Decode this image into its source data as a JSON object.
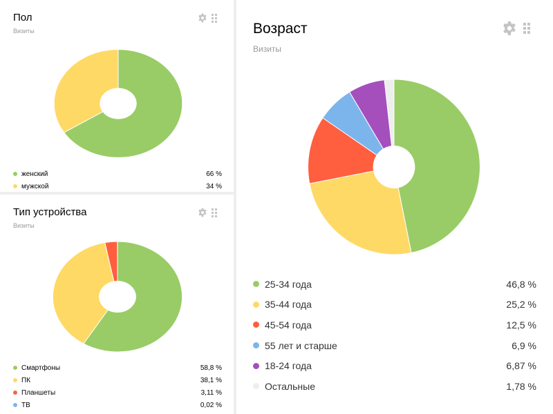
{
  "widgets": {
    "gender": {
      "title": "Пол",
      "subtitle": "Визиты",
      "icons": [
        "gear-icon",
        "drag-handle-icon"
      ],
      "chart_data": {
        "type": "pie",
        "series": [
          {
            "name": "женский",
            "value": 66,
            "label": "66 %",
            "color": "#99cc66"
          },
          {
            "name": "мужской",
            "value": 34,
            "label": "34 %",
            "color": "#ffd966"
          }
        ]
      }
    },
    "device": {
      "title": "Тип устройства",
      "subtitle": "Визиты",
      "icons": [
        "gear-icon",
        "drag-handle-icon"
      ],
      "chart_data": {
        "type": "pie",
        "series": [
          {
            "name": "Смартфоны",
            "value": 58.8,
            "label": "58,8 %",
            "color": "#99cc66"
          },
          {
            "name": "ПК",
            "value": 38.1,
            "label": "38,1 %",
            "color": "#ffd966"
          },
          {
            "name": "Планшеты",
            "value": 3.11,
            "label": "3,11 %",
            "color": "#ff5f3f"
          },
          {
            "name": "ТВ",
            "value": 0.02,
            "label": "0,02 %",
            "color": "#7cb5ec"
          }
        ]
      }
    },
    "age": {
      "title": "Возраст",
      "subtitle": "Визиты",
      "icons": [
        "gear-icon",
        "drag-handle-icon"
      ],
      "chart_data": {
        "type": "pie",
        "series": [
          {
            "name": "25-34 года",
            "value": 46.8,
            "label": "46,8 %",
            "color": "#99cc66"
          },
          {
            "name": "35-44 года",
            "value": 25.2,
            "label": "25,2 %",
            "color": "#ffd966"
          },
          {
            "name": "45-54 года",
            "value": 12.5,
            "label": "12,5 %",
            "color": "#ff5f3f"
          },
          {
            "name": "55 лет и старше",
            "value": 6.9,
            "label": "6,9 %",
            "color": "#7cb5ec"
          },
          {
            "name": "18-24 года",
            "value": 6.87,
            "label": "6,87 %",
            "color": "#a54fbd"
          },
          {
            "name": "Остальные",
            "value": 1.78,
            "label": "1,78 %",
            "color": "#eeeeee"
          }
        ]
      }
    }
  }
}
